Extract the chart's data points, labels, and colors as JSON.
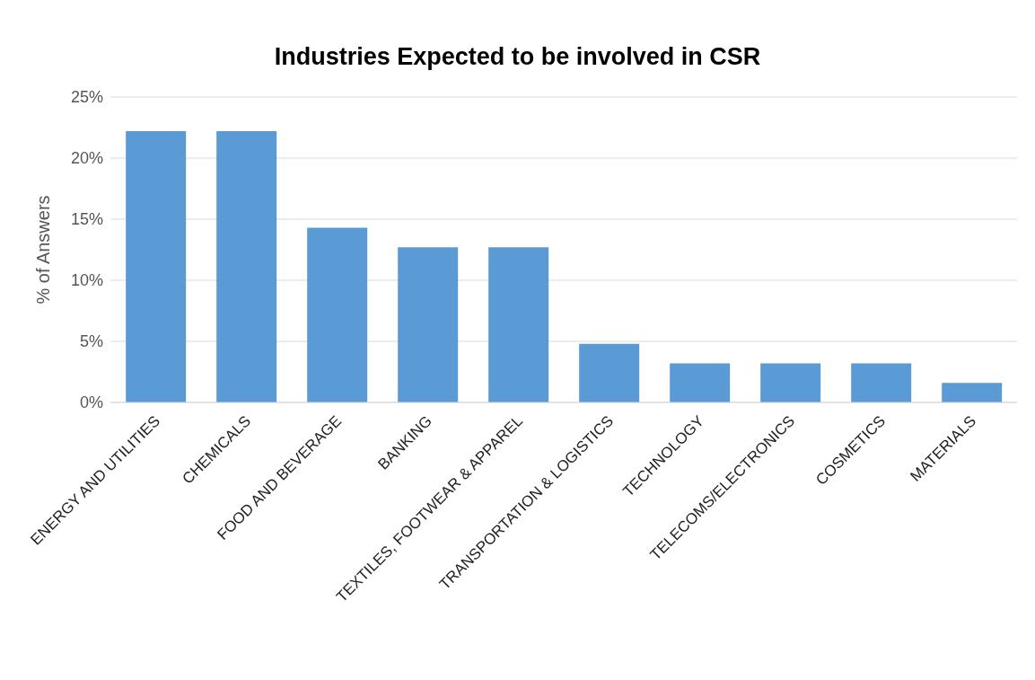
{
  "chart_data": {
    "type": "bar",
    "title": "Industries Expected to be involved in CSR",
    "ylabel": "% of Answers",
    "categories": [
      "ENERGY AND UTILITIES",
      "CHEMICALS",
      "FOOD AND BEVERAGE",
      "BANKING",
      "TEXTILES, FOOTWEAR & APPAREL",
      "TRANSPORTATION & LOGISTICS",
      "TECHNOLOGY",
      "TELECOMS/ELECTRONICS",
      "COSMETICS",
      "MATERIALS"
    ],
    "values": [
      22.2,
      22.2,
      14.3,
      12.7,
      12.7,
      4.8,
      3.2,
      3.2,
      3.2,
      1.6
    ],
    "color": "#5b9bd5",
    "ylim": [
      0,
      25
    ],
    "yticks": [
      {
        "value": 0,
        "label": "0%"
      },
      {
        "value": 5,
        "label": "5%"
      },
      {
        "value": 10,
        "label": "10%"
      },
      {
        "value": 15,
        "label": "15%"
      },
      {
        "value": 20,
        "label": "20%"
      },
      {
        "value": 25,
        "label": "25%"
      }
    ],
    "grid": "y",
    "legend": false
  }
}
